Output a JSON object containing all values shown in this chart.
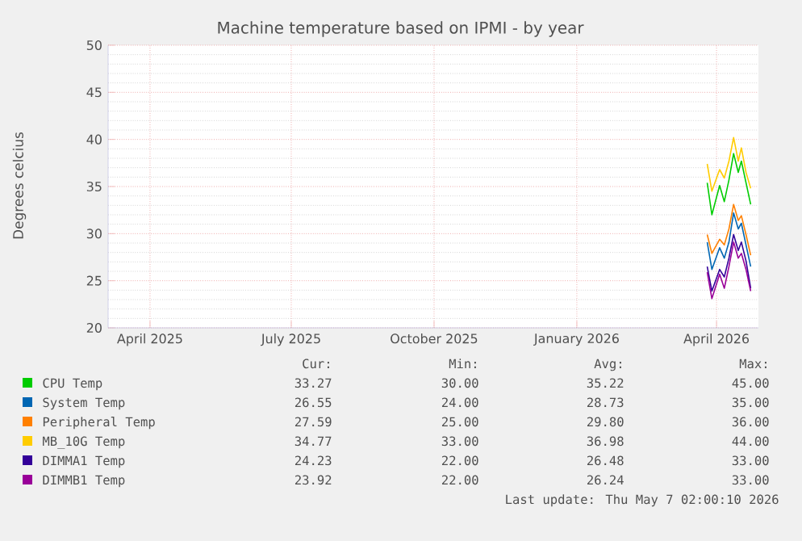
{
  "chart_data": {
    "type": "line",
    "title": "Machine temperature based on IPMI - by year",
    "ylabel": "Degrees celcius",
    "x": [
      "2026-03-26",
      "2026-03-29",
      "2026-04-03",
      "2026-04-06",
      "2026-04-09",
      "2026-04-12",
      "2026-04-15",
      "2026-04-17",
      "2026-04-20",
      "2026-04-23"
    ],
    "series": [
      {
        "name": "CPU Temp",
        "color": "#00cc00",
        "values": [
          35.4,
          32.0,
          35.1,
          33.4,
          35.7,
          38.5,
          36.5,
          37.7,
          35.4,
          33.1
        ]
      },
      {
        "name": "System Temp",
        "color": "#0066b3",
        "values": [
          29.1,
          26.2,
          28.5,
          27.4,
          29.1,
          32.2,
          30.5,
          31.1,
          28.8,
          26.5
        ]
      },
      {
        "name": "Peripheral Temp",
        "color": "#ff8000",
        "values": [
          29.9,
          27.9,
          29.4,
          28.8,
          30.5,
          33.1,
          31.4,
          31.9,
          29.9,
          27.7
        ]
      },
      {
        "name": "MB_10G Temp",
        "color": "#ffcc00",
        "values": [
          37.4,
          34.5,
          36.8,
          35.9,
          37.7,
          40.2,
          37.7,
          39.1,
          36.5,
          34.8
        ]
      },
      {
        "name": "DIMMA1 Temp",
        "color": "#330099",
        "values": [
          26.5,
          23.9,
          26.2,
          25.4,
          27.4,
          29.9,
          28.2,
          29.1,
          27.1,
          24.2
        ]
      },
      {
        "name": "DIMMB1 Temp",
        "color": "#990099",
        "values": [
          25.9,
          23.1,
          25.7,
          24.2,
          26.5,
          29.1,
          27.4,
          27.9,
          26.2,
          23.9
        ]
      }
    ],
    "xlim": [
      "2025-03-05",
      "2026-04-28"
    ],
    "xticks": [
      {
        "value": "2025-04-01",
        "label": "April 2025"
      },
      {
        "value": "2025-07-01",
        "label": "July 2025"
      },
      {
        "value": "2025-10-01",
        "label": "October 2025"
      },
      {
        "value": "2026-01-01",
        "label": "January 2026"
      },
      {
        "value": "2026-04-01",
        "label": "April 2026"
      }
    ],
    "ylim": [
      20,
      50
    ],
    "yticks": [
      20,
      25,
      30,
      35,
      40,
      45,
      50
    ],
    "grid": true,
    "legend": "bottom",
    "marker": "none",
    "line_style": "solid",
    "annotations": [
      "Cur:",
      "Min:",
      "Avg:",
      "Max:",
      "33.27",
      "30.00",
      "35.22",
      "45.00",
      "26.55",
      "24.00",
      "28.73",
      "35.00",
      "27.59",
      "25.00",
      "29.80",
      "36.00",
      "34.77",
      "33.00",
      "36.98",
      "44.00",
      "24.23",
      "22.00",
      "26.48",
      "33.00",
      "23.92",
      "22.00",
      "26.24",
      "33.00",
      "Last update: Thu May  7 02:00:10 2026"
    ]
  }
}
